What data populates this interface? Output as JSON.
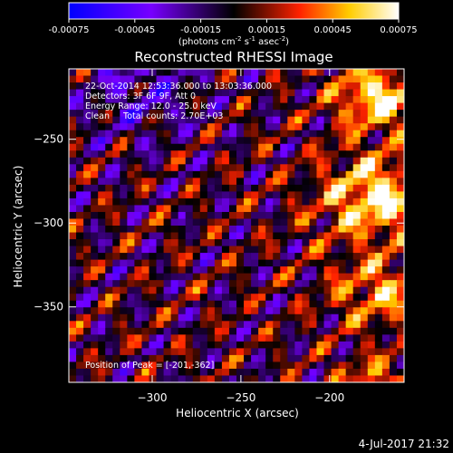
{
  "chart_data": {
    "type": "heatmap",
    "title": "Reconstructed RHESSI Image",
    "xlabel": "Heliocentric X (arcsec)",
    "ylabel": "Heliocentric Y (arcsec)",
    "xlim": [
      -347,
      -158
    ],
    "ylim": [
      -395,
      -208
    ],
    "x_ticks": [
      -300,
      -250,
      -200
    ],
    "y_ticks": [
      -250,
      -300,
      -350
    ],
    "colorbar": {
      "range": [
        -0.00075,
        0.00075
      ],
      "ticks": [
        -0.00075,
        -0.00045,
        -0.00015,
        0.00015,
        0.00045,
        0.00075
      ],
      "tick_labels": [
        "-0.00075",
        "-0.00045",
        "-0.00015",
        "0.00015",
        "0.00045",
        "0.00075"
      ],
      "unit_prefix": "(photons cm",
      "unit_sup1": "-2",
      "unit_mid": " s",
      "unit_sup2": "-1",
      "unit_mid2": " asec",
      "unit_sup3": "-2",
      "unit_suffix": ")",
      "stops": [
        "#0000ff",
        "#7700ff",
        "#000000",
        "#ff2200",
        "#ffcc00",
        "#ffffff"
      ]
    },
    "annotations": [
      "22-Oct-2014 12:53:36.000 to 13:03:36.000",
      "Detectors: 3F 6F 9F, Att 0",
      "Energy Range: 12.0 - 25.0 keV",
      "Clean     Total counts: 2.70E+03"
    ],
    "peak_label": "Position of Peak = [-201,-362]",
    "grid": false
  },
  "footer": {
    "timestamp": "4-Jul-2017 21:32"
  }
}
